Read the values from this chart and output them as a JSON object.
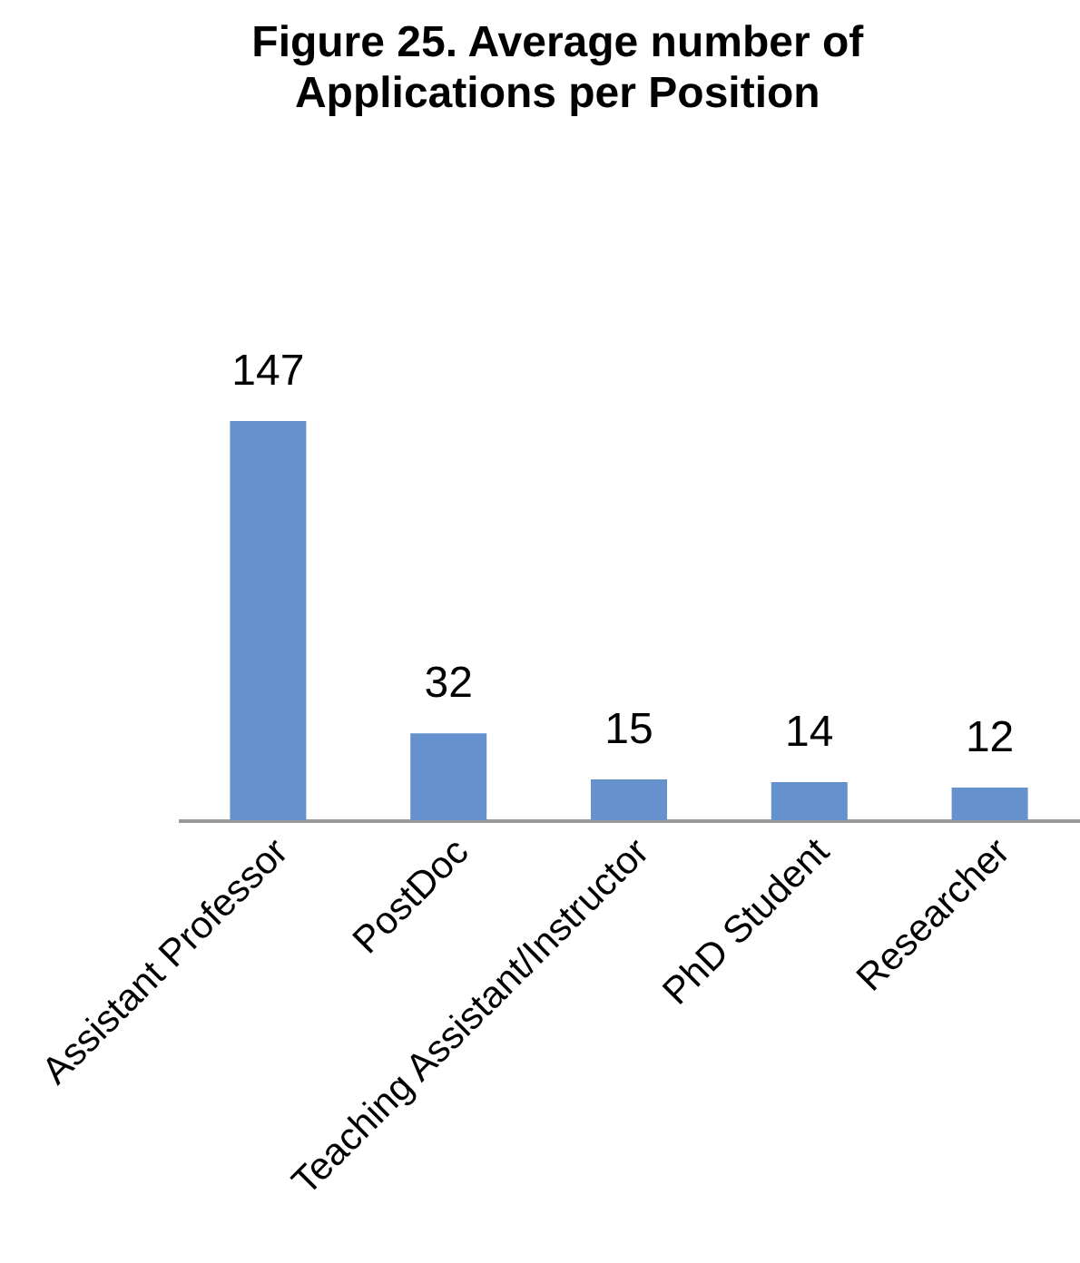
{
  "chart_data": {
    "type": "bar",
    "title": "Figure 25. Average number of Applications per Position",
    "categories": [
      "Assistant Professor",
      "PostDoc",
      "Teaching Assistant/Instructor",
      "PhD Student",
      "Researcher"
    ],
    "values": [
      147,
      32,
      15,
      14,
      12
    ],
    "color": "#6591cd",
    "data_labels": true
  }
}
